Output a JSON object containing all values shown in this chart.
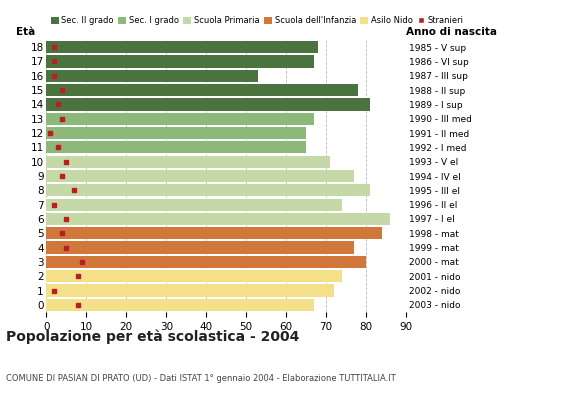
{
  "ages": [
    18,
    17,
    16,
    15,
    14,
    13,
    12,
    11,
    10,
    9,
    8,
    7,
    6,
    5,
    4,
    3,
    2,
    1,
    0
  ],
  "anno_nascita": [
    "1985 - V sup",
    "1986 - VI sup",
    "1987 - III sup",
    "1988 - II sup",
    "1989 - I sup",
    "1990 - III med",
    "1991 - II med",
    "1992 - I med",
    "1993 - V el",
    "1994 - IV el",
    "1995 - III el",
    "1996 - II el",
    "1997 - I el",
    "1998 - mat",
    "1999 - mat",
    "2000 - mat",
    "2001 - nido",
    "2002 - nido",
    "2003 - nido"
  ],
  "bar_values": [
    68,
    67,
    53,
    78,
    81,
    67,
    65,
    65,
    71,
    77,
    81,
    74,
    86,
    84,
    77,
    80,
    74,
    72,
    67
  ],
  "stranieri": [
    2,
    2,
    2,
    4,
    3,
    4,
    1,
    3,
    5,
    4,
    7,
    2,
    5,
    4,
    5,
    9,
    8,
    2,
    8
  ],
  "bar_colors": [
    "#4a7340",
    "#4a7340",
    "#4a7340",
    "#4a7340",
    "#4a7340",
    "#8cb87a",
    "#8cb87a",
    "#8cb87a",
    "#c5d9a8",
    "#c5d9a8",
    "#c5d9a8",
    "#c5d9a8",
    "#c5d9a8",
    "#d2773a",
    "#d2773a",
    "#d2773a",
    "#f5e08a",
    "#f5e08a",
    "#f5e08a"
  ],
  "legend_labels": [
    "Sec. II grado",
    "Sec. I grado",
    "Scuola Primaria",
    "Scuola dell'Infanzia",
    "Asilo Nido",
    "Stranieri"
  ],
  "legend_colors": [
    "#4a7340",
    "#8cb87a",
    "#c5d9a8",
    "#d2773a",
    "#f5e08a",
    "#b22222"
  ],
  "stranieri_color": "#b22222",
  "title": "Popolazione per età scolastica - 2004",
  "subtitle": "COMUNE DI PASIAN DI PRATO (UD) - Dati ISTAT 1° gennaio 2004 - Elaborazione TUTTITALIA.IT",
  "xlabel_age": "Età",
  "xlabel_anno": "Anno di nascita",
  "xlim": [
    0,
    90
  ],
  "xticks": [
    0,
    10,
    20,
    30,
    40,
    50,
    60,
    70,
    80,
    90
  ],
  "grid_color": "#aaaaaa",
  "bg_color": "#ffffff"
}
